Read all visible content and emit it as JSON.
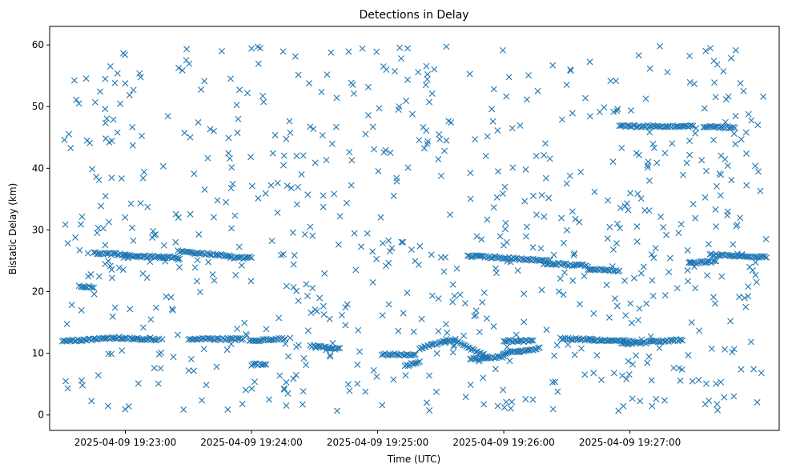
{
  "chart_data": {
    "type": "scatter",
    "title": "Detections in Delay",
    "xlabel": "Time (UTC)",
    "ylabel": "Bistatic Delay (km)",
    "marker": "x",
    "color": "#1f77b4",
    "x_range_seconds_from_19_22_30": [
      -6,
      341
    ],
    "ylim": [
      -2.5,
      63
    ],
    "xticks": [
      {
        "seconds": 30,
        "label": "2025-04-09 19:23:00"
      },
      {
        "seconds": 90,
        "label": "2025-04-09 19:24:00"
      },
      {
        "seconds": 150,
        "label": "2025-04-09 19:25:00"
      },
      {
        "seconds": 210,
        "label": "2025-04-09 19:26:00"
      },
      {
        "seconds": 270,
        "label": "2025-04-09 19:27:00"
      }
    ],
    "yticks": [
      0,
      10,
      20,
      30,
      40,
      50,
      60
    ],
    "tracks": [
      {
        "t0": 0,
        "t1": 27,
        "y0": 12.0,
        "y1": 12.5
      },
      {
        "t0": 27,
        "t1": 46,
        "y0": 12.5,
        "y1": 12.2
      },
      {
        "t0": 60,
        "t1": 86,
        "y0": 12.3,
        "y1": 12.3
      },
      {
        "t0": 89,
        "t1": 106,
        "y0": 12.0,
        "y1": 12.4
      },
      {
        "t0": 90,
        "t1": 97,
        "y0": 8.2,
        "y1": 8.2
      },
      {
        "t0": 118,
        "t1": 132,
        "y0": 11.2,
        "y1": 10.7
      },
      {
        "t0": 152,
        "t1": 168,
        "y0": 9.8,
        "y1": 9.8
      },
      {
        "t0": 163,
        "t1": 170,
        "y0": 8.0,
        "y1": 8.5
      },
      {
        "t0": 170,
        "t1": 187,
        "y0": 10.8,
        "y1": 12.3
      },
      {
        "t0": 187,
        "t1": 202,
        "y0": 12.0,
        "y1": 9.5
      },
      {
        "t0": 194,
        "t1": 210,
        "y0": 9.0,
        "y1": 9.5
      },
      {
        "t0": 210,
        "t1": 224,
        "y0": 12.0,
        "y1": 12.0
      },
      {
        "t0": 210,
        "t1": 227,
        "y0": 10.0,
        "y1": 10.8
      },
      {
        "t0": 237,
        "t1": 272,
        "y0": 12.4,
        "y1": 11.9
      },
      {
        "t0": 266,
        "t1": 295,
        "y0": 11.5,
        "y1": 12.2
      },
      {
        "t0": 8,
        "t1": 15,
        "y0": 20.8,
        "y1": 20.8
      },
      {
        "t0": 15,
        "t1": 30,
        "y0": 26.2,
        "y1": 26.0
      },
      {
        "t0": 30,
        "t1": 55,
        "y0": 25.8,
        "y1": 25.5
      },
      {
        "t0": 55,
        "t1": 80,
        "y0": 26.5,
        "y1": 25.8
      },
      {
        "t0": 80,
        "t1": 90,
        "y0": 25.5,
        "y1": 25.5
      },
      {
        "t0": 193,
        "t1": 232,
        "y0": 25.8,
        "y1": 25.0
      },
      {
        "t0": 229,
        "t1": 250,
        "y0": 24.6,
        "y1": 24.2
      },
      {
        "t0": 250,
        "t1": 265,
        "y0": 23.7,
        "y1": 23.4
      },
      {
        "t0": 298,
        "t1": 311,
        "y0": 24.6,
        "y1": 24.9
      },
      {
        "t0": 308,
        "t1": 335,
        "y0": 26.0,
        "y1": 25.6
      },
      {
        "t0": 265,
        "t1": 300,
        "y0": 46.8,
        "y1": 46.8
      },
      {
        "t0": 305,
        "t1": 320,
        "y0": 46.8,
        "y1": 46.6
      }
    ],
    "noise_points": 760,
    "noise_t_range": [
      0,
      335
    ],
    "noise_y_range": [
      0.5,
      60
    ]
  }
}
